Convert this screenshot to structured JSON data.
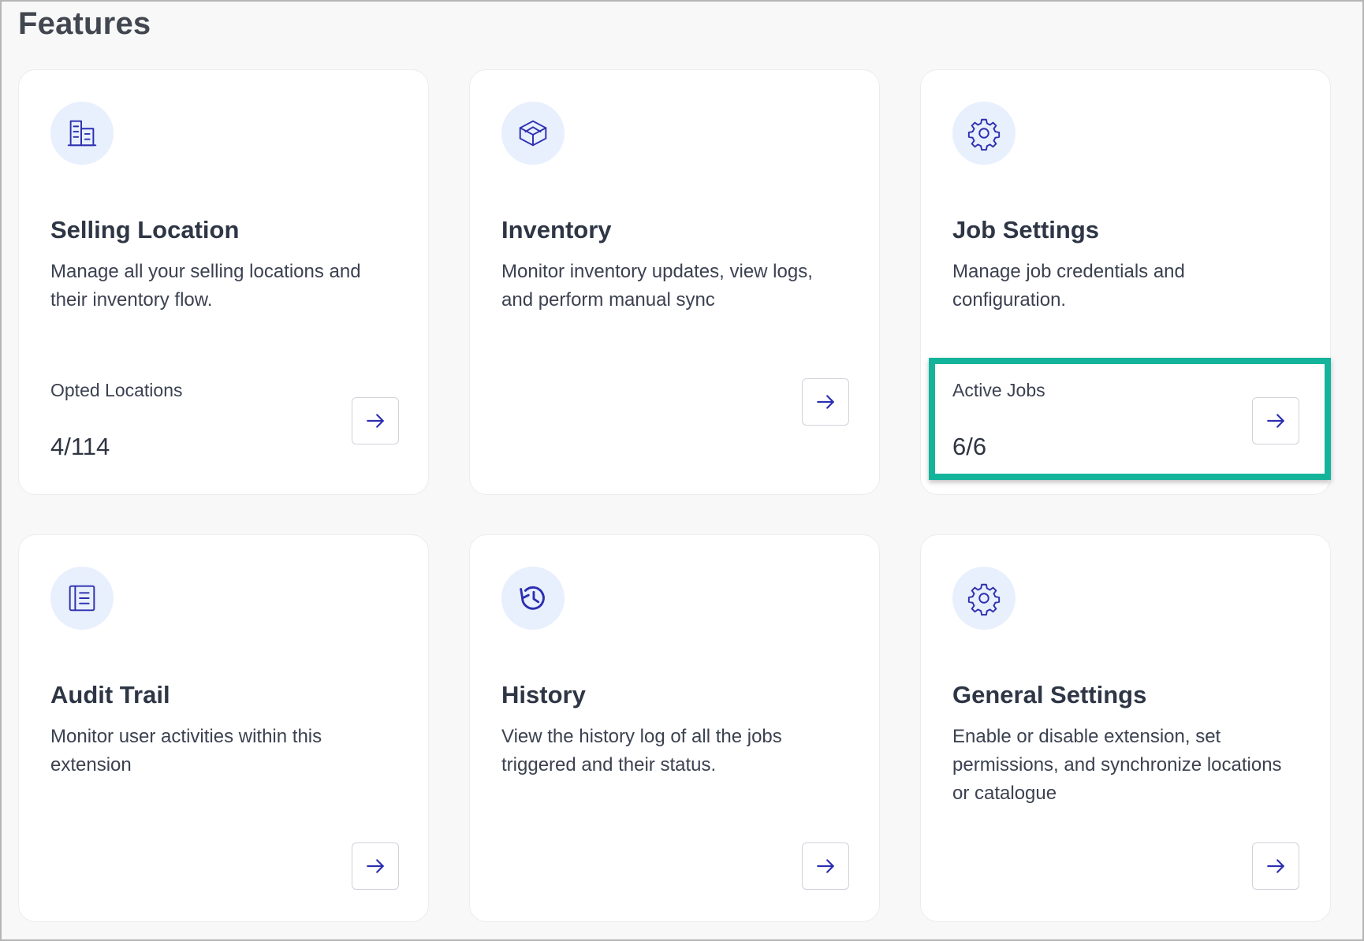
{
  "page": {
    "title": "Features"
  },
  "colors": {
    "accent": "#2c2fb0",
    "icon_bg": "#e8effd",
    "highlight": "#14b49b"
  },
  "cards": [
    {
      "icon": "building-icon",
      "title": "Selling Location",
      "description": "Manage all your selling locations and their inventory flow.",
      "stat_label": "Opted Locations",
      "stat_value": "4/114"
    },
    {
      "icon": "cube-icon",
      "title": "Inventory",
      "description": "Monitor inventory updates, view logs, and perform manual sync"
    },
    {
      "icon": "gear-icon",
      "title": "Job Settings",
      "description": "Manage job credentials and configuration.",
      "stat_label": "Active Jobs",
      "stat_value": "6/6"
    },
    {
      "icon": "notebook-icon",
      "title": "Audit Trail",
      "description": "Monitor user activities within this extension"
    },
    {
      "icon": "history-icon",
      "title": "History",
      "description": "View the history log of all the jobs triggered and their status."
    },
    {
      "icon": "gear-icon",
      "title": "General Settings",
      "description": "Enable or disable extension, set permissions, and synchronize locations or catalogue"
    }
  ]
}
